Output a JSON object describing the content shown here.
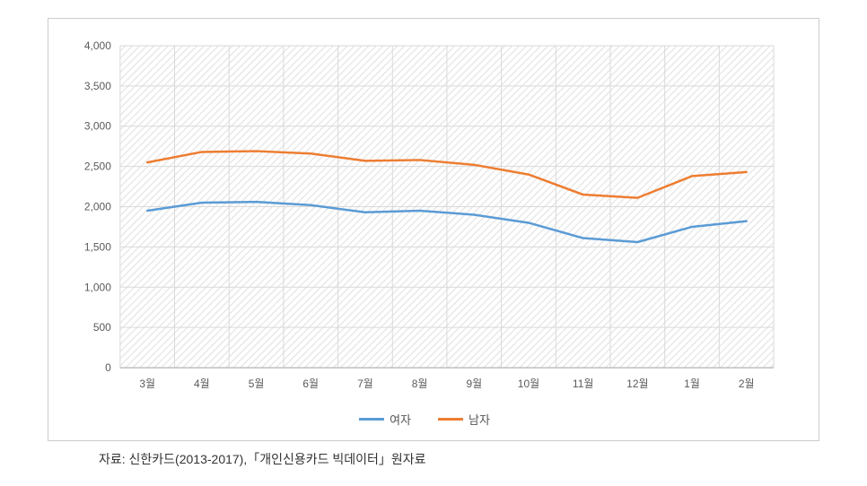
{
  "chart": {
    "type": "line",
    "ylim": [
      0,
      4000
    ],
    "ytick_step": 500,
    "yticks": [
      "0",
      "500",
      "1,000",
      "1,500",
      "2,000",
      "2,500",
      "3,000",
      "3,500",
      "4,000"
    ],
    "categories": [
      "3월",
      "4월",
      "5월",
      "6월",
      "7월",
      "8월",
      "9월",
      "10월",
      "11월",
      "12월",
      "1월",
      "2월"
    ],
    "series": [
      {
        "key": "female",
        "label": "여자",
        "color": "#5b9bd5",
        "values": [
          1950,
          2050,
          2060,
          2020,
          1930,
          1950,
          1900,
          1800,
          1610,
          1560,
          1750,
          1820
        ]
      },
      {
        "key": "male",
        "label": "남자",
        "color": "#ed7d31",
        "values": [
          2550,
          2680,
          2690,
          2660,
          2570,
          2580,
          2520,
          2400,
          2150,
          2110,
          2380,
          2430
        ]
      }
    ],
    "line_width": 2.5,
    "background_color": "#ffffff",
    "plot_hatch_color": "#e0e0e0",
    "grid_color": "#d9d9d9",
    "axis_label_color": "#595959",
    "axis_label_fontsize": 12,
    "border_color": "#cccccc"
  },
  "caption": {
    "text": "자료: 신한카드(2013-2017),「개인신용카드 빅데이터」원자료"
  }
}
